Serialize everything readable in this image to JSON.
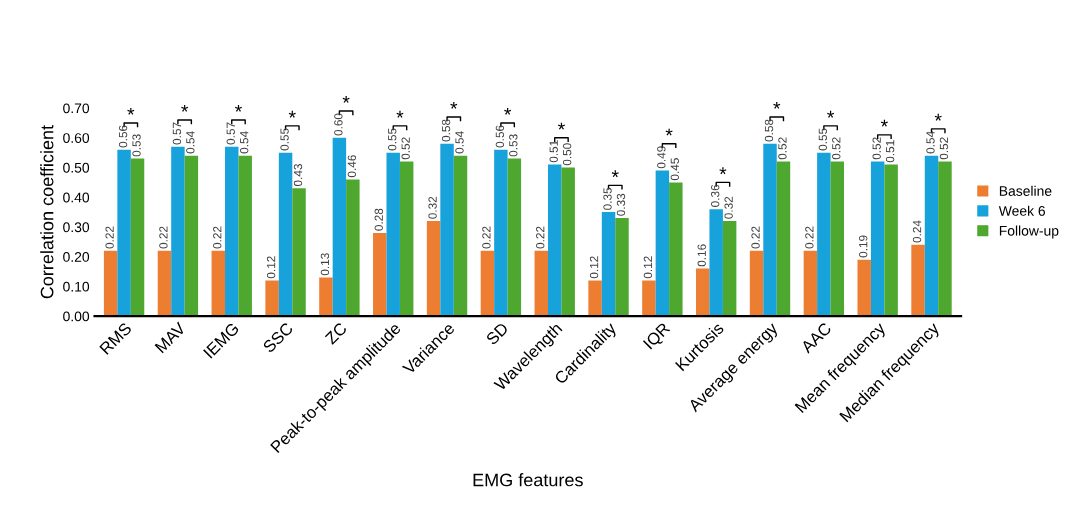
{
  "chart_data": {
    "type": "bar",
    "xlabel": "EMG features",
    "ylabel": "Correlation coefficient",
    "categories": [
      "RMS",
      "MAV",
      "IEMG",
      "SSC",
      "ZC",
      "Peak-to-peak amplitude",
      "Variance",
      "SD",
      "Wavelength",
      "Cardinality",
      "IQR",
      "Kurtosis",
      "Average energy",
      "AAC",
      "Mean frequency",
      "Median frequency"
    ],
    "series": [
      {
        "name": "Baseline",
        "color": "#ed7d31",
        "values": [
          0.22,
          0.22,
          0.22,
          0.12,
          0.13,
          0.28,
          0.32,
          0.22,
          0.22,
          0.12,
          0.12,
          0.16,
          0.22,
          0.22,
          0.19,
          0.24
        ],
        "value_labels": [
          "0.22",
          "0.22",
          "0.22",
          "0.12",
          "0.13",
          "0.28",
          "0.32",
          "0.22",
          "0.22",
          "0.12",
          "0.12",
          "0.16",
          "0.22",
          "0.22",
          "0.19",
          "0.24"
        ]
      },
      {
        "name": "Week 6",
        "color": "#17a2dc",
        "values": [
          0.56,
          0.57,
          0.57,
          0.55,
          0.6,
          0.55,
          0.58,
          0.56,
          0.51,
          0.35,
          0.49,
          0.36,
          0.58,
          0.55,
          0.52,
          0.54
        ],
        "value_labels": [
          "0.56",
          "0.57",
          "0.57",
          "0.55",
          "0.60",
          "0.55",
          "0.58",
          "0.56",
          "0.51",
          "0.35",
          "0.49",
          "0.36",
          "0.58",
          "0.55",
          "0.52",
          "0.54"
        ]
      },
      {
        "name": "Follow-up",
        "color": "#4ea72e",
        "values": [
          0.53,
          0.54,
          0.54,
          0.43,
          0.46,
          0.52,
          0.54,
          0.53,
          0.5,
          0.33,
          0.45,
          0.32,
          0.52,
          0.52,
          0.51,
          0.52
        ],
        "value_labels": [
          "0.53",
          "0.54",
          "0.54",
          "0.43",
          "0.46",
          "0.52",
          "0.54",
          "0.53",
          "0.50",
          "0.33",
          "0.45",
          "0.32",
          "0.52",
          "0.52",
          "0.51",
          "0.52"
        ]
      }
    ],
    "ylim": [
      0,
      0.7
    ],
    "yticks": [
      {
        "value": 0,
        "label": "0.00"
      },
      {
        "value": 0.1,
        "label": "0.10"
      },
      {
        "value": 0.2,
        "label": "0.20"
      },
      {
        "value": 0.3,
        "label": "0.30"
      },
      {
        "value": 0.4,
        "label": "0.40"
      },
      {
        "value": 0.5,
        "label": "0.50"
      },
      {
        "value": 0.6,
        "label": "0.60"
      },
      {
        "value": 0.7,
        "label": "0.70"
      }
    ],
    "grid": false,
    "legend": "right",
    "annotations": [
      "*",
      "*",
      "*",
      "*",
      "*",
      "*",
      "*",
      "*",
      "*",
      "*",
      "*",
      "*",
      "*",
      "*",
      "*",
      "*"
    ]
  }
}
